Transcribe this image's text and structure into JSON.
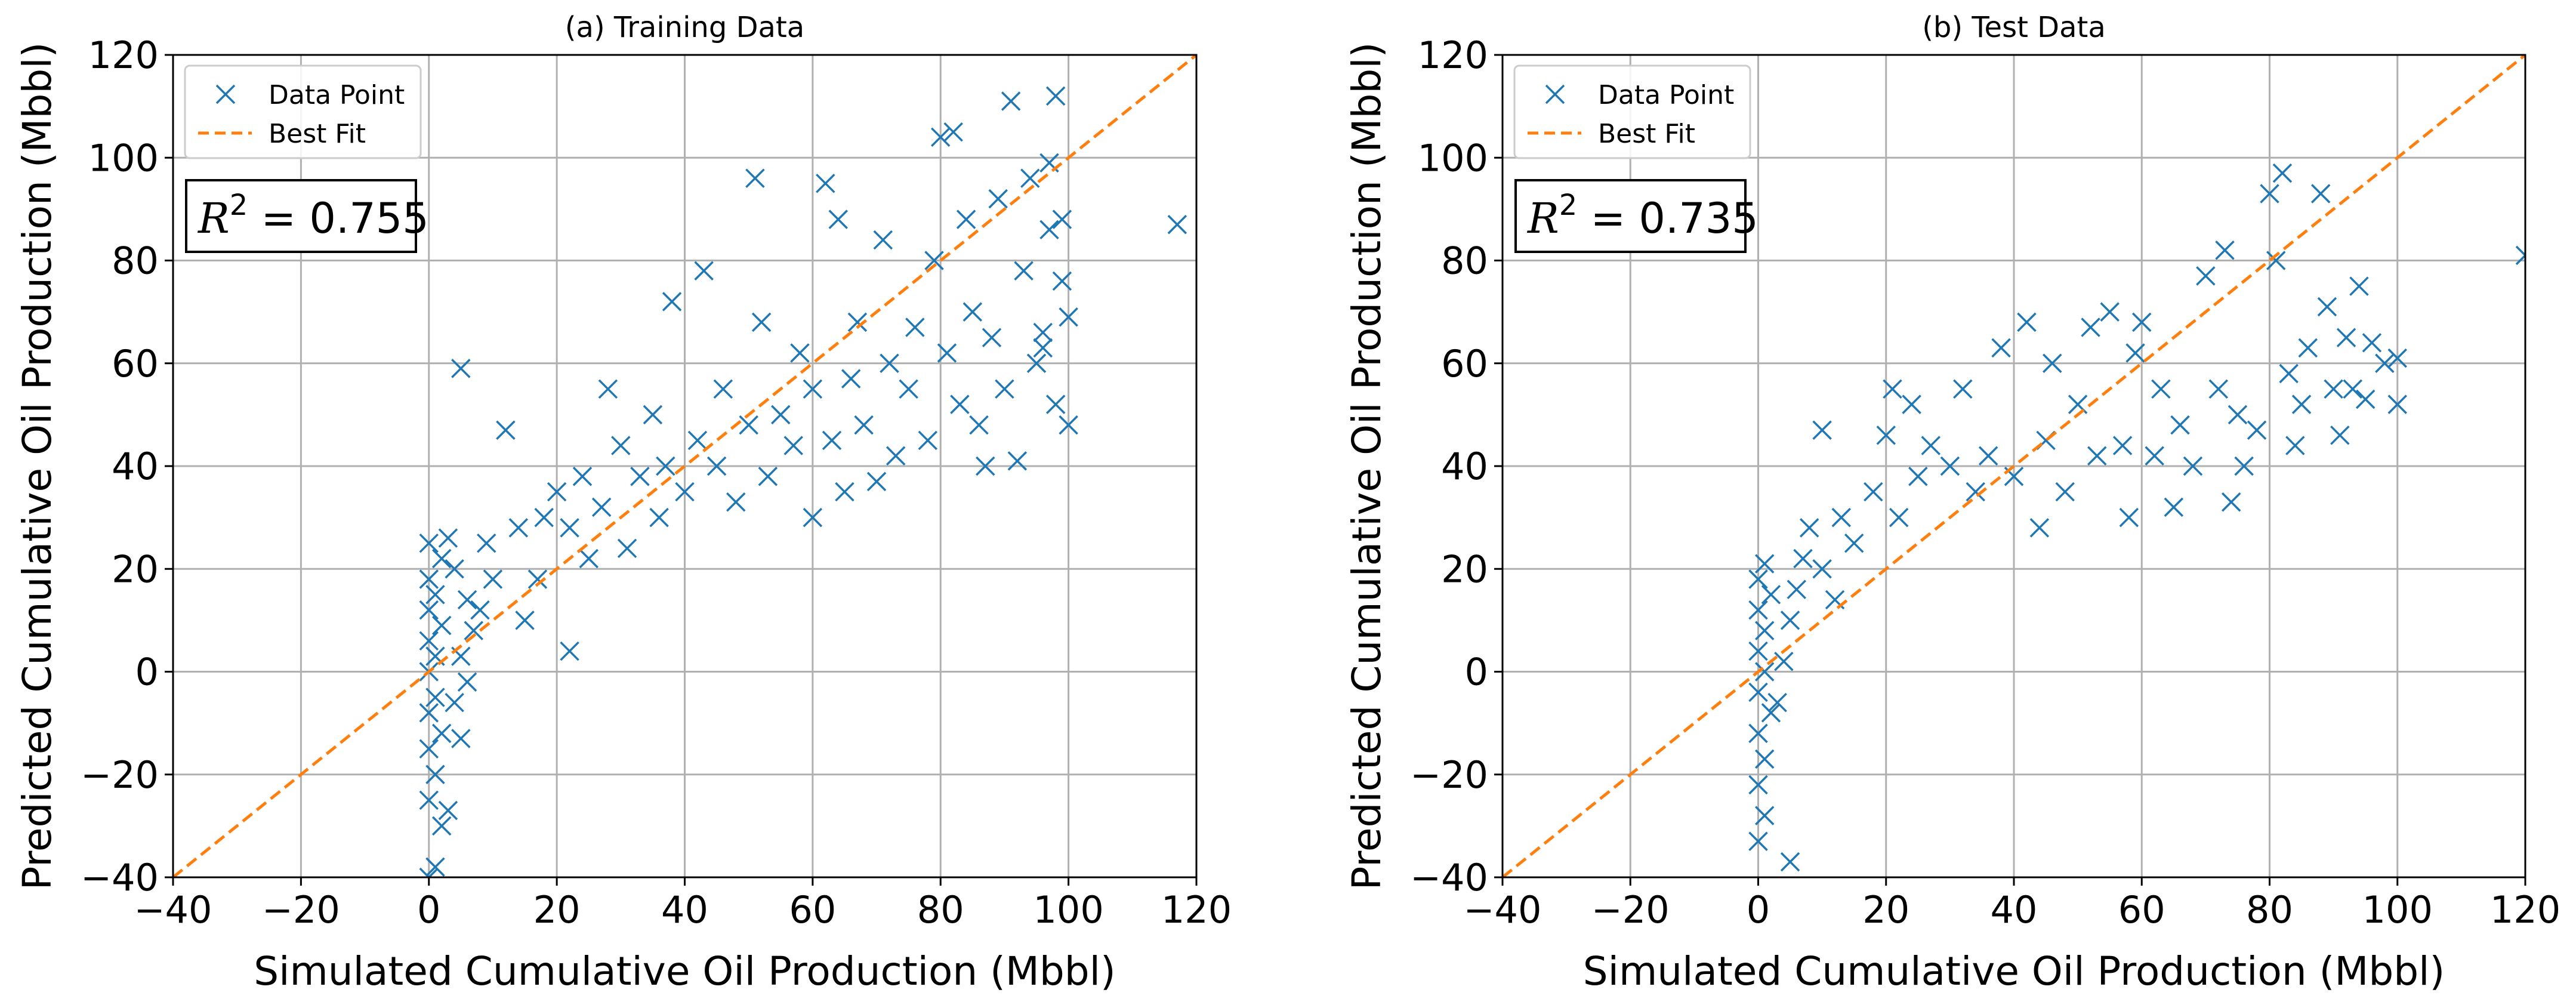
{
  "chart_data": [
    {
      "type": "scatter",
      "title": "(a) Training Data",
      "xlabel": "Simulated Cumulative Oil Production (Mbbl)",
      "ylabel": "Predicted Cumulative Oil Production (Mbbl)",
      "xlim": [
        -40,
        120
      ],
      "ylim": [
        -40,
        120
      ],
      "xticks": [
        "−40",
        "−20",
        "0",
        "20",
        "40",
        "60",
        "80",
        "100",
        "120"
      ],
      "yticks": [
        "−40",
        "−20",
        "0",
        "20",
        "40",
        "60",
        "80",
        "100",
        "120"
      ],
      "grid": true,
      "legend": {
        "position": "top-left",
        "entries": [
          {
            "label": "Data Point",
            "marker": "x",
            "color": "#1f77b4"
          },
          {
            "label": "Best Fit",
            "style": "dashed",
            "color": "#ff7f0e"
          }
        ]
      },
      "annotation": {
        "prefix": "R",
        "superscript": "2",
        "text": " = 0.755"
      },
      "series": [
        {
          "name": "Data Point",
          "color": "#1f77b4",
          "marker": "x",
          "points": [
            [
              0,
              -40
            ],
            [
              1,
              -38
            ],
            [
              2,
              -30
            ],
            [
              3,
              -27
            ],
            [
              0,
              -25
            ],
            [
              1,
              -20
            ],
            [
              0,
              -15
            ],
            [
              2,
              -12
            ],
            [
              0,
              -8
            ],
            [
              1,
              -5
            ],
            [
              0,
              0
            ],
            [
              1,
              3
            ],
            [
              0,
              6
            ],
            [
              2,
              9
            ],
            [
              0,
              12
            ],
            [
              1,
              15
            ],
            [
              0,
              18
            ],
            [
              2,
              22
            ],
            [
              0,
              25
            ],
            [
              3,
              26
            ],
            [
              5,
              -13
            ],
            [
              4,
              -6
            ],
            [
              6,
              -2
            ],
            [
              5,
              3
            ],
            [
              7,
              8
            ],
            [
              6,
              14
            ],
            [
              4,
              20
            ],
            [
              5,
              59
            ],
            [
              8,
              12
            ],
            [
              10,
              18
            ],
            [
              9,
              25
            ],
            [
              12,
              47
            ],
            [
              14,
              28
            ],
            [
              15,
              10
            ],
            [
              17,
              18
            ],
            [
              18,
              30
            ],
            [
              20,
              35
            ],
            [
              22,
              28
            ],
            [
              22,
              4
            ],
            [
              24,
              38
            ],
            [
              25,
              22
            ],
            [
              27,
              32
            ],
            [
              28,
              55
            ],
            [
              30,
              44
            ],
            [
              31,
              24
            ],
            [
              33,
              38
            ],
            [
              35,
              50
            ],
            [
              36,
              30
            ],
            [
              37,
              40
            ],
            [
              38,
              72
            ],
            [
              40,
              35
            ],
            [
              42,
              45
            ],
            [
              43,
              78
            ],
            [
              45,
              40
            ],
            [
              46,
              55
            ],
            [
              48,
              33
            ],
            [
              50,
              48
            ],
            [
              51,
              96
            ],
            [
              52,
              68
            ],
            [
              53,
              38
            ],
            [
              55,
              50
            ],
            [
              57,
              44
            ],
            [
              58,
              62
            ],
            [
              60,
              30
            ],
            [
              60,
              55
            ],
            [
              62,
              95
            ],
            [
              63,
              45
            ],
            [
              64,
              88
            ],
            [
              65,
              35
            ],
            [
              66,
              57
            ],
            [
              67,
              68
            ],
            [
              68,
              48
            ],
            [
              70,
              37
            ],
            [
              71,
              84
            ],
            [
              72,
              60
            ],
            [
              73,
              42
            ],
            [
              75,
              55
            ],
            [
              76,
              67
            ],
            [
              78,
              45
            ],
            [
              79,
              80
            ],
            [
              80,
              104
            ],
            [
              81,
              62
            ],
            [
              82,
              105
            ],
            [
              83,
              52
            ],
            [
              84,
              88
            ],
            [
              85,
              70
            ],
            [
              86,
              48
            ],
            [
              87,
              40
            ],
            [
              88,
              65
            ],
            [
              89,
              92
            ],
            [
              90,
              55
            ],
            [
              91,
              111
            ],
            [
              92,
              41
            ],
            [
              93,
              78
            ],
            [
              94,
              96
            ],
            [
              95,
              60
            ],
            [
              96,
              66
            ],
            [
              97,
              99
            ],
            [
              98,
              112
            ],
            [
              98,
              52
            ],
            [
              99,
              88
            ],
            [
              100,
              69
            ],
            [
              100,
              48
            ],
            [
              99,
              76
            ],
            [
              97,
              86
            ],
            [
              96,
              63
            ],
            [
              117,
              87
            ]
          ]
        }
      ],
      "best_fit": {
        "x": [
          -40,
          120
        ],
        "y": [
          -40,
          120
        ]
      }
    },
    {
      "type": "scatter",
      "title": "(b) Test Data",
      "xlabel": "Simulated Cumulative Oil Production (Mbbl)",
      "ylabel": "Predicted Cumulative Oil Production (Mbbl)",
      "xlim": [
        -40,
        120
      ],
      "ylim": [
        -40,
        120
      ],
      "xticks": [
        "−40",
        "−20",
        "0",
        "20",
        "40",
        "60",
        "80",
        "100",
        "120"
      ],
      "yticks": [
        "−40",
        "−20",
        "0",
        "20",
        "40",
        "60",
        "80",
        "100",
        "120"
      ],
      "grid": true,
      "legend": {
        "position": "top-left",
        "entries": [
          {
            "label": "Data Point",
            "marker": "x",
            "color": "#1f77b4"
          },
          {
            "label": "Best Fit",
            "style": "dashed",
            "color": "#ff7f0e"
          }
        ]
      },
      "annotation": {
        "prefix": "R",
        "superscript": "2",
        "text": " = 0.735"
      },
      "series": [
        {
          "name": "Data Point",
          "color": "#1f77b4",
          "marker": "x",
          "points": [
            [
              0,
              -33
            ],
            [
              1,
              -28
            ],
            [
              0,
              -22
            ],
            [
              1,
              -17
            ],
            [
              0,
              -12
            ],
            [
              2,
              -8
            ],
            [
              0,
              -4
            ],
            [
              1,
              0
            ],
            [
              0,
              4
            ],
            [
              1,
              8
            ],
            [
              0,
              12
            ],
            [
              2,
              15
            ],
            [
              0,
              18
            ],
            [
              1,
              21
            ],
            [
              5,
              -37
            ],
            [
              3,
              -6
            ],
            [
              4,
              2
            ],
            [
              5,
              10
            ],
            [
              6,
              16
            ],
            [
              7,
              22
            ],
            [
              8,
              28
            ],
            [
              10,
              20
            ],
            [
              10,
              47
            ],
            [
              12,
              14
            ],
            [
              13,
              30
            ],
            [
              15,
              25
            ],
            [
              18,
              35
            ],
            [
              20,
              46
            ],
            [
              21,
              55
            ],
            [
              22,
              30
            ],
            [
              24,
              52
            ],
            [
              25,
              38
            ],
            [
              27,
              44
            ],
            [
              30,
              40
            ],
            [
              32,
              55
            ],
            [
              34,
              35
            ],
            [
              36,
              42
            ],
            [
              38,
              63
            ],
            [
              40,
              38
            ],
            [
              42,
              68
            ],
            [
              44,
              28
            ],
            [
              45,
              45
            ],
            [
              46,
              60
            ],
            [
              48,
              35
            ],
            [
              50,
              52
            ],
            [
              52,
              67
            ],
            [
              53,
              42
            ],
            [
              55,
              70
            ],
            [
              57,
              44
            ],
            [
              58,
              30
            ],
            [
              59,
              62
            ],
            [
              60,
              68
            ],
            [
              62,
              42
            ],
            [
              63,
              55
            ],
            [
              65,
              32
            ],
            [
              66,
              48
            ],
            [
              68,
              40
            ],
            [
              70,
              77
            ],
            [
              72,
              55
            ],
            [
              73,
              82
            ],
            [
              74,
              33
            ],
            [
              75,
              50
            ],
            [
              76,
              40
            ],
            [
              78,
              47
            ],
            [
              80,
              93
            ],
            [
              81,
              80
            ],
            [
              82,
              97
            ],
            [
              83,
              58
            ],
            [
              84,
              44
            ],
            [
              85,
              52
            ],
            [
              86,
              63
            ],
            [
              88,
              93
            ],
            [
              89,
              71
            ],
            [
              90,
              55
            ],
            [
              91,
              46
            ],
            [
              92,
              65
            ],
            [
              93,
              55
            ],
            [
              94,
              75
            ],
            [
              95,
              53
            ],
            [
              96,
              64
            ],
            [
              98,
              60
            ],
            [
              100,
              61
            ],
            [
              100,
              52
            ],
            [
              120,
              81
            ]
          ]
        }
      ],
      "best_fit": {
        "x": [
          -40,
          120
        ],
        "y": [
          -40,
          120
        ]
      }
    }
  ]
}
